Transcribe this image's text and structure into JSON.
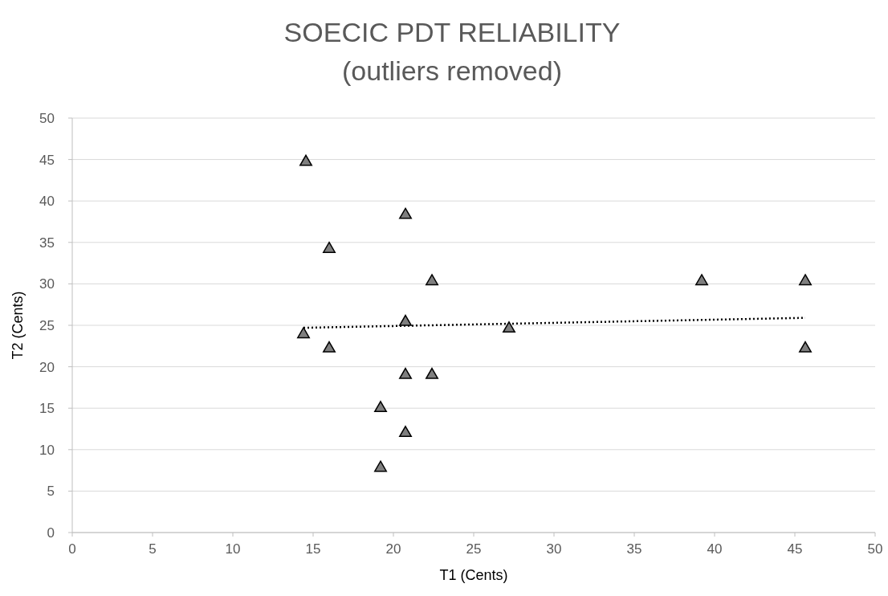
{
  "chart_data": {
    "type": "scatter",
    "title": "SOECIC PDT RELIABILITY",
    "subtitle": "(outliers removed)",
    "xlabel": "T1 (Cents)",
    "ylabel": "T2 (Cents)",
    "xlim": [
      0,
      50
    ],
    "xticks": [
      0,
      5,
      10,
      15,
      20,
      25,
      30,
      35,
      40,
      45,
      50
    ],
    "ylim": [
      0,
      50
    ],
    "yticks": [
      0,
      5,
      10,
      15,
      20,
      25,
      30,
      35,
      40,
      45,
      50
    ],
    "grid": "y",
    "series": [
      {
        "color": "#7f7f7f",
        "marker": "triangle",
        "x": [
          14.4,
          14.55,
          16.0,
          16.0,
          19.2,
          19.2,
          20.75,
          20.75,
          20.75,
          20.75,
          22.4,
          22.4,
          27.2,
          39.2,
          45.65,
          45.65
        ],
        "values": [
          24.0,
          44.8,
          34.3,
          22.3,
          15.1,
          7.9,
          38.4,
          25.5,
          19.1,
          12.1,
          30.4,
          19.1,
          24.7,
          30.4,
          30.4,
          22.3
        ]
      },
      {
        "type": "line",
        "color": "#000000",
        "line_style": "dotted",
        "marker": "none",
        "x": [
          14.4,
          45.65
        ],
        "values": [
          24.7,
          25.9
        ]
      }
    ]
  }
}
